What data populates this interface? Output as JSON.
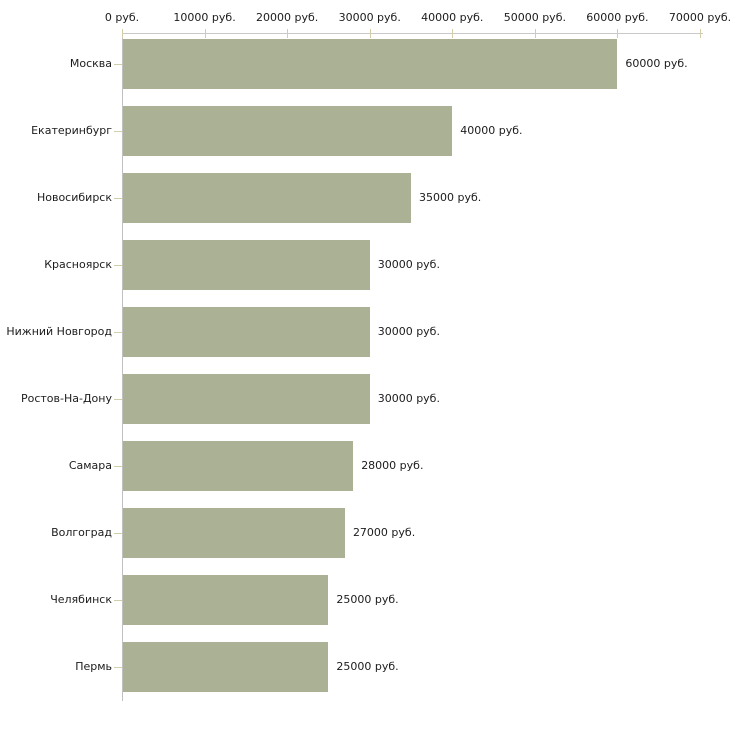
{
  "chart_data": {
    "type": "bar",
    "orientation": "horizontal",
    "title": "",
    "xlabel": "",
    "ylabel": "",
    "unit": "руб.",
    "categories": [
      "Москва",
      "Екатеринбург",
      "Новосибирск",
      "Красноярск",
      "Нижний Новгород",
      "Ростов-На-Дону",
      "Самара",
      "Волгоград",
      "Челябинск",
      "Пермь"
    ],
    "values": [
      60000,
      40000,
      35000,
      30000,
      30000,
      30000,
      28000,
      27000,
      25000,
      25000
    ],
    "value_labels": [
      "60000 руб.",
      "40000 руб.",
      "35000 руб.",
      "30000 руб.",
      "30000 руб.",
      "30000 руб.",
      "28000 руб.",
      "27000 руб.",
      "25000 руб.",
      "25000 руб."
    ],
    "x_axis": {
      "position": "top",
      "min": 0,
      "max": 70000,
      "tick_values": [
        0,
        10000,
        20000,
        30000,
        40000,
        50000,
        60000,
        70000
      ],
      "tick_labels": [
        "0 руб.",
        "10000 руб.",
        "20000 руб.",
        "30000 руб.",
        "40000 руб.",
        "50000 руб.",
        "60000 руб.",
        "70000 руб."
      ]
    },
    "grid": false,
    "legend": false,
    "colors": {
      "bar_fill": "#abb194",
      "axis_line": "#c5c5c5",
      "tick_mark": "#d2cfa8",
      "text": "#1c1c1c",
      "background": "#ffffff"
    }
  }
}
